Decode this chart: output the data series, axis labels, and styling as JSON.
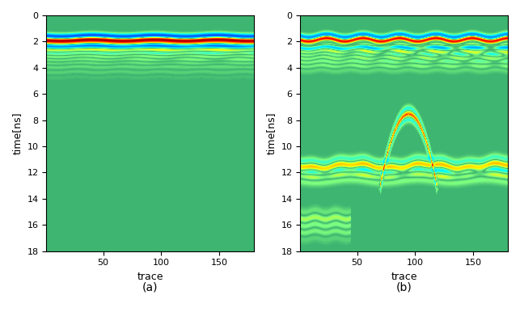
{
  "figsize": [
    6.43,
    3.86
  ],
  "dpi": 100,
  "xlim": [
    1,
    180
  ],
  "ylim": [
    18,
    0
  ],
  "xticks": [
    50,
    100,
    150
  ],
  "yticks": [
    0,
    2,
    4,
    6,
    8,
    10,
    12,
    14,
    16,
    18
  ],
  "xlabel": "trace",
  "ylabel_a": "time[ns]",
  "ylabel_b": "time[ns]",
  "label_a": "(a)",
  "label_b": "(b)",
  "n_traces": 200,
  "n_time": 360,
  "t_max": 18.0,
  "cmap_colors": [
    [
      0.0,
      "#00007F"
    ],
    [
      0.1,
      "#0000FF"
    ],
    [
      0.25,
      "#007FFF"
    ],
    [
      0.38,
      "#00FFFF"
    ],
    [
      0.45,
      "#7FFF7F"
    ],
    [
      0.5,
      "#3CB371"
    ],
    [
      0.55,
      "#7FFF7F"
    ],
    [
      0.62,
      "#FFFF00"
    ],
    [
      0.75,
      "#FF7F00"
    ],
    [
      0.88,
      "#FF0000"
    ],
    [
      1.0,
      "#7F0000"
    ]
  ]
}
